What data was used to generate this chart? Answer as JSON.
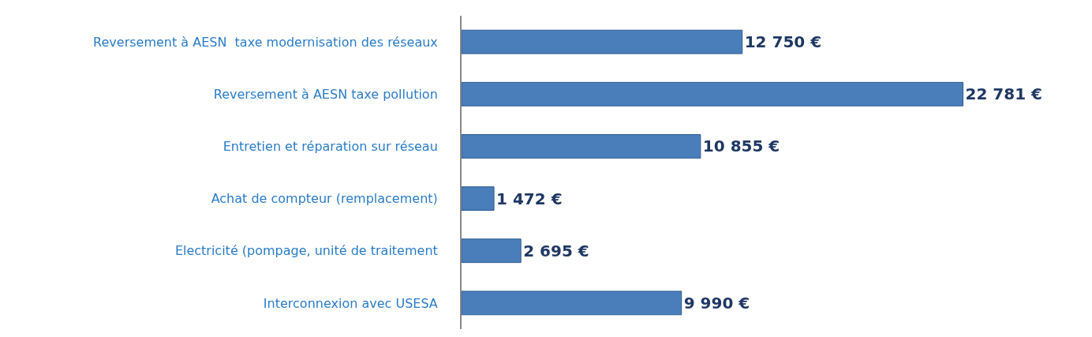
{
  "chart_data": {
    "type": "bar",
    "orientation": "horizontal",
    "tick_labels": "y",
    "categories": [
      "Reversement à AESN  taxe modernisation des réseaux",
      "Reversement à AESN taxe pollution",
      "Entretien et réparation sur réseau",
      "Achat de compteur (remplacement)",
      "Electricité (pompage, unité de traitement",
      "Interconnexion avec USESA"
    ],
    "values": [
      12750,
      22781,
      10855,
      1472,
      2695,
      9990
    ],
    "value_labels": [
      "12 750 €",
      "22 781 €",
      "10 855 €",
      "1 472 €",
      "2 695 €",
      "9 990 €"
    ],
    "color": "#4a7ebb"
  }
}
